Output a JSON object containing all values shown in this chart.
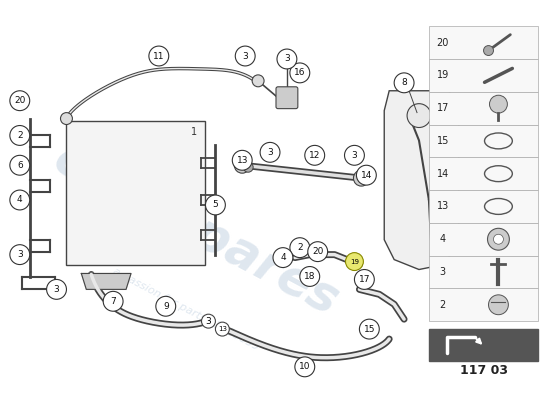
{
  "bg_color": "#ffffff",
  "watermark_color": "#c0d0e0",
  "page_code": "117 03",
  "sidebar_items": [
    {
      "num": "20"
    },
    {
      "num": "19"
    },
    {
      "num": "17"
    },
    {
      "num": "15"
    },
    {
      "num": "14"
    },
    {
      "num": "13"
    },
    {
      "num": "4"
    },
    {
      "num": "3"
    },
    {
      "num": "2"
    }
  ]
}
